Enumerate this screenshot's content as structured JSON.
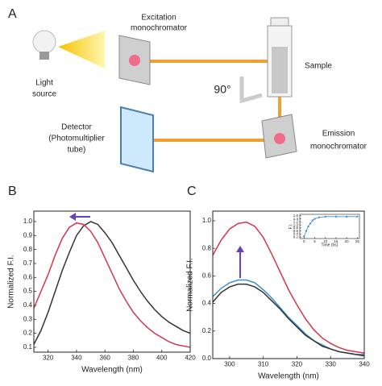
{
  "diagram": {
    "panel_label": "A",
    "light_source": [
      "Light",
      "source"
    ],
    "excitation": [
      "Excitation",
      "monochromator"
    ],
    "sample": "Sample",
    "angle": "90°",
    "detector": [
      "Detector",
      "(Photomultiplier",
      "tube)"
    ],
    "emission": [
      "Emission",
      "monochromator"
    ]
  },
  "chart_data": [
    {
      "type": "line",
      "panel_label": "B",
      "xlabel": "Wavelength (nm)",
      "ylabel": "Normalized F.I.",
      "x": [
        310,
        315,
        320,
        325,
        330,
        335,
        340,
        345,
        350,
        355,
        360,
        365,
        370,
        375,
        380,
        385,
        390,
        395,
        400,
        405,
        410,
        415,
        420
      ],
      "series": [
        {
          "name": "black",
          "color": "#333333",
          "values": [
            0.12,
            0.22,
            0.35,
            0.5,
            0.65,
            0.78,
            0.9,
            0.97,
            1.0,
            0.98,
            0.92,
            0.85,
            0.76,
            0.67,
            0.58,
            0.5,
            0.43,
            0.37,
            0.32,
            0.28,
            0.25,
            0.22,
            0.2
          ]
        },
        {
          "name": "red",
          "color": "#d6364f",
          "values": [
            0.38,
            0.5,
            0.62,
            0.76,
            0.88,
            0.96,
            0.99,
            0.98,
            0.93,
            0.85,
            0.74,
            0.63,
            0.52,
            0.43,
            0.35,
            0.29,
            0.24,
            0.2,
            0.17,
            0.14,
            0.12,
            0.11,
            0.1
          ]
        }
      ],
      "xlim": [
        310,
        420
      ],
      "xticks": [
        320,
        340,
        360,
        380,
        400,
        420
      ],
      "ylim": [
        0.065,
        1.075
      ],
      "yticks": [
        0.1,
        0.2,
        0.3,
        0.4,
        0.5,
        0.6,
        0.7,
        0.8,
        0.9,
        {
          "value": 1,
          "label": "1.0"
        }
      ]
    },
    {
      "type": "line",
      "panel_label": "C",
      "xlabel": "Wavelength (nm)",
      "ylabel": "Normalized F.I.",
      "x": [
        295,
        297.5,
        300,
        302.5,
        305,
        307.5,
        310,
        312.5,
        315,
        317.5,
        320,
        322.5,
        325,
        327.5,
        330,
        332.5,
        335,
        337.5,
        340
      ],
      "series": [
        {
          "name": "red",
          "color": "#d6364f",
          "values": [
            0.75,
            0.86,
            0.94,
            0.98,
            0.99,
            0.96,
            0.88,
            0.76,
            0.63,
            0.5,
            0.39,
            0.29,
            0.21,
            0.15,
            0.11,
            0.08,
            0.06,
            0.05,
            0.04
          ]
        },
        {
          "name": "blue",
          "color": "#3a8fd0",
          "values": [
            0.45,
            0.51,
            0.55,
            0.57,
            0.57,
            0.55,
            0.5,
            0.44,
            0.37,
            0.3,
            0.24,
            0.18,
            0.13,
            0.1,
            0.07,
            0.05,
            0.04,
            0.03,
            0.03
          ]
        },
        {
          "name": "black",
          "color": "#333333",
          "values": [
            0.41,
            0.48,
            0.52,
            0.54,
            0.54,
            0.52,
            0.48,
            0.42,
            0.36,
            0.29,
            0.23,
            0.17,
            0.13,
            0.09,
            0.07,
            0.05,
            0.04,
            0.03,
            0.02
          ]
        }
      ],
      "xlim": [
        295,
        340
      ],
      "xticks": [
        300,
        310,
        320,
        330,
        340
      ],
      "ylim": [
        0,
        1.07
      ],
      "yticks": [
        {
          "value": 0,
          "label": "0.0"
        },
        0.2,
        0.4,
        0.6,
        0.8,
        {
          "value": 1,
          "label": "1.0"
        }
      ]
    },
    {
      "type": "line",
      "markers": true,
      "xlabel": "Time (hs)",
      "ylabel": "F.I.",
      "x": [
        0,
        1,
        2,
        3,
        4,
        5,
        7,
        10,
        15,
        20,
        25
      ],
      "series": [
        {
          "name": "kinetics",
          "color": "#3a8fd0",
          "values": [
            0.25,
            0.6,
            0.9,
            1.1,
            1.3,
            1.4,
            1.5,
            1.55,
            1.55,
            1.55,
            1.55
          ]
        }
      ],
      "xlim": [
        -2,
        26
      ],
      "xticks": [
        0,
        5,
        10,
        15,
        20,
        25
      ],
      "ylim": [
        0.1,
        1.7
      ],
      "yticks": [
        0.2,
        0.4,
        0.6,
        0.8,
        {
          "value": 1,
          "label": "1.0"
        },
        1.2,
        1.4,
        1.6
      ]
    }
  ]
}
